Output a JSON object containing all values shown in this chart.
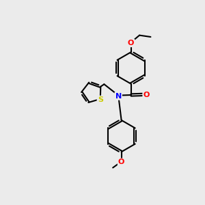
{
  "background_color": "#ebebeb",
  "bond_color": "#000000",
  "bond_width": 1.5,
  "atom_colors": {
    "N": "#0000ff",
    "O": "#ff0000",
    "S": "#cccc00",
    "C": "#000000"
  },
  "font_size": 8,
  "figsize": [
    3.0,
    3.0
  ],
  "dpi": 100
}
